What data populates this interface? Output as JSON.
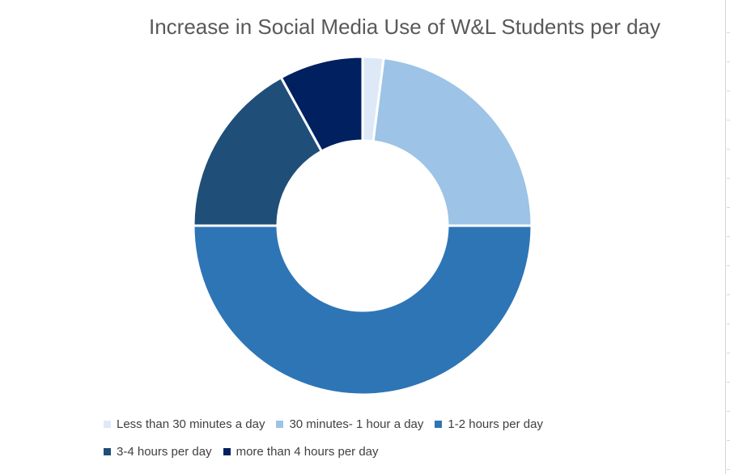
{
  "chart_data": {
    "type": "pie",
    "subtype": "donut",
    "title": "Increase in Social Media Use of W&L Students per day",
    "categories": [
      "Less than 30 minutes a day",
      "30 minutes- 1 hour a day",
      "1-2 hours per day",
      "3-4 hours per day",
      "more than 4 hours per day"
    ],
    "values": [
      2,
      23,
      50,
      17,
      8
    ],
    "colors": [
      "#dde9f7",
      "#9dc3e6",
      "#2e75b6",
      "#1f4e79",
      "#002060"
    ],
    "legend_position": "bottom"
  }
}
